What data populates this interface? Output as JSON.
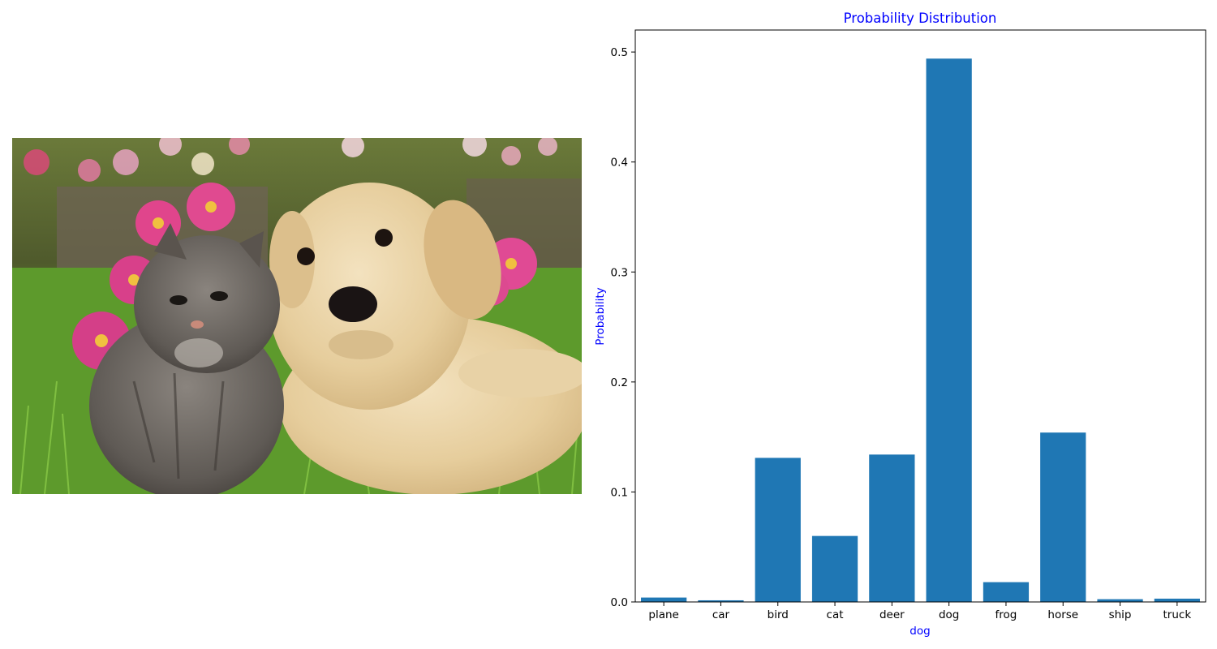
{
  "image_panel": {
    "subject": "kitten and puppy on grass with pink flowers"
  },
  "colors": {
    "bar": "#1f77b4",
    "title": "#0000ff",
    "axis_label": "#0000ff",
    "axes": "#000000"
  },
  "chart_data": {
    "type": "bar",
    "title": "Probability Distribution",
    "xlabel": "dog",
    "ylabel": "Probability",
    "categories": [
      "plane",
      "car",
      "bird",
      "cat",
      "deer",
      "dog",
      "frog",
      "horse",
      "ship",
      "truck"
    ],
    "values": [
      0.004,
      0.0015,
      0.131,
      0.06,
      0.134,
      0.494,
      0.018,
      0.154,
      0.0025,
      0.003
    ],
    "ylim": [
      0,
      0.52
    ],
    "yticks": [
      0.0,
      0.1,
      0.2,
      0.3,
      0.4,
      0.5
    ],
    "ytick_labels": [
      "0.0",
      "0.1",
      "0.2",
      "0.3",
      "0.4",
      "0.5"
    ],
    "grid": false,
    "legend": "none"
  }
}
